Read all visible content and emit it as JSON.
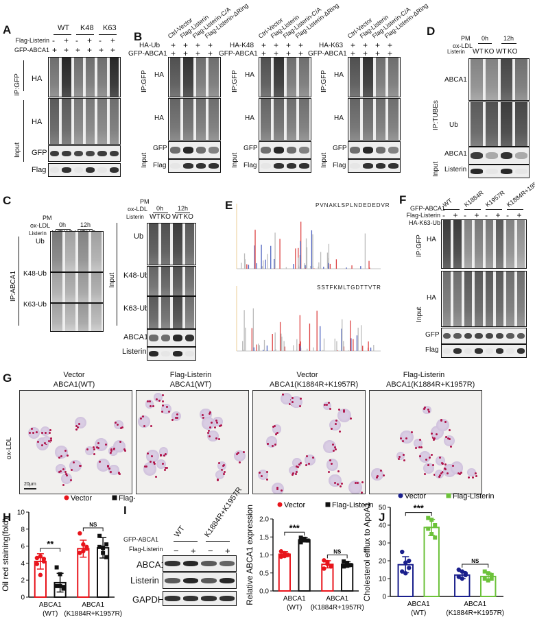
{
  "panels": {
    "A": "A",
    "B": "B",
    "C": "C",
    "D": "D",
    "E": "E",
    "F": "F",
    "G": "G",
    "H": "H",
    "I": "I",
    "J": "J"
  },
  "panelA": {
    "groups": [
      "WT",
      "K48",
      "K63"
    ],
    "rows": [
      {
        "label": "Flag-Listerin",
        "marks": [
          "-",
          "+",
          "-",
          "+",
          "-",
          "+"
        ]
      },
      {
        "label": "GFP-ABCA1",
        "marks": [
          "+",
          "+",
          "+",
          "+",
          "+",
          "+"
        ]
      }
    ],
    "ip": "IP:GFP",
    "input": "Input",
    "blots": [
      "HA",
      "HA",
      "GFP",
      "Flag"
    ]
  },
  "panelB": {
    "lanes": [
      "Ctrl-Vector",
      "Flag-Listerin",
      "Flag-Listerin-C/A",
      "Flag-Listerin-ΔRing"
    ],
    "subpanels": [
      {
        "row1": "HA-Ub",
        "row2": "GFP-ABCA1"
      },
      {
        "row1": "HA-K48",
        "row2": "GFP-ABCA1"
      },
      {
        "row1": "HA-K63",
        "row2": "GFP-ABCA1"
      }
    ],
    "mark": "+",
    "ip": "IP:GFP",
    "input": "Input",
    "blots": [
      "HA",
      "HA",
      "GFP",
      "Flag"
    ]
  },
  "panelD": {
    "pm": "PM",
    "oxldl": "ox-LDL",
    "times": [
      "0h",
      "12h"
    ],
    "listerin": "Listerin",
    "genotypes": [
      "WT",
      "KO",
      "WT",
      "KO"
    ],
    "ip": "IP:TUBEs",
    "input": "Input",
    "blots": [
      "ABCA1",
      "Ub",
      "ABCA1",
      "Listerin"
    ]
  },
  "panelC": {
    "pm": "PM",
    "oxldl": "ox-LDL",
    "times": [
      "0h",
      "12h"
    ],
    "listerin": "Listerin",
    "genotypes": [
      "WT",
      "KO",
      "WT",
      "KO"
    ],
    "ip": "IP:ABCA1",
    "input": "Input",
    "ipBlots": [
      "Ub",
      "K48-Ub",
      "K63-Ub"
    ],
    "inputBlots": [
      "Ub",
      "K48-Ub",
      "K63-Ub",
      "ABCA1",
      "Listerin"
    ]
  },
  "panelE": {
    "peptides": [
      {
        "seq": "PVNAKLSPLNDEDEDVR",
        "modified": "K"
      },
      {
        "seq": "SSTFKMLTGDTTVTR",
        "modified": "K"
      }
    ]
  },
  "panelF": {
    "construct": "GFP-ABCA1",
    "groups": [
      "WT",
      "K1884R",
      "K1957R",
      "K1884R+1957R"
    ],
    "rows": [
      {
        "label": "Flag-Listerin",
        "marks": [
          "-",
          "+",
          "-",
          "+",
          "-",
          "+",
          "-",
          "+"
        ]
      },
      {
        "label": "HA-K63-Ub",
        "marks": [
          "+",
          "+",
          "+",
          "+",
          "+",
          "+",
          "+",
          "+"
        ]
      }
    ],
    "ip": "IP:GFP",
    "input": "Input",
    "blots": [
      "HA",
      "HA",
      "GFP",
      "Flag"
    ]
  },
  "panelG": {
    "rowLabel": "ox-LDL",
    "scale": "20μm",
    "titles": [
      [
        "Vector",
        "ABCA1(WT)"
      ],
      [
        "Flag-Listerin",
        "ABCA1(WT)"
      ],
      [
        "Vector",
        "ABCA1(K1884R+K1957R)"
      ],
      [
        "Flag-Listerin",
        "ABCA1(K1884R+K1957R)"
      ]
    ]
  },
  "panelI": {
    "construct": "GFP-ABCA1",
    "groups": [
      "WT",
      "K1884R+K1957R"
    ],
    "listerin": "Flag-Listerin",
    "marks": [
      "−",
      "+",
      "−",
      "+"
    ],
    "blots": [
      "ABCA1",
      "Listerin",
      "GAPDH"
    ]
  },
  "colors": {
    "vector_red": "#e8141b",
    "flag_black": "#111111",
    "vector_navy": "#1a1f8c",
    "flag_green": "#6cc23a"
  },
  "chart_data": [
    {
      "id": "H",
      "type": "bar",
      "ylabel": "Oil red staining(fold)",
      "ylim": [
        0,
        10
      ],
      "yticks": [
        0,
        2,
        4,
        6,
        8,
        10
      ],
      "categories": [
        "ABCA1\n(WT)",
        "ABCA1\n(K1884R+K1957R)"
      ],
      "series": [
        {
          "name": "Vector",
          "marker": "circle",
          "color": "#e8141b",
          "means": [
            4.2,
            5.7
          ],
          "sd": [
            0.9,
            1.0
          ],
          "points": [
            [
              4.6,
              4.8,
              4.2,
              3.9,
              2.6,
              4.5
            ],
            [
              7.5,
              6.2,
              5.7,
              5.2,
              5.4,
              5.9
            ]
          ]
        },
        {
          "name": "Flag-Listerin",
          "marker": "square",
          "color": "#111111",
          "means": [
            1.7,
            5.8
          ],
          "sd": [
            1.1,
            1.2
          ],
          "points": [
            [
              3.5,
              2.7,
              1.2,
              1.3,
              1.3,
              1.0
            ],
            [
              7.2,
              5.8,
              6.2,
              5.9,
              5.2,
              4.7
            ]
          ]
        }
      ],
      "significance": [
        "**",
        "NS"
      ]
    },
    {
      "id": "I",
      "type": "bar",
      "ylabel": "Relative ABCA1 expression",
      "ylim": [
        0,
        2.0
      ],
      "yticks": [
        "0.0",
        "0.5",
        "1.0",
        "1.5",
        "2.0"
      ],
      "categories": [
        "ABCA1\n(WT)",
        "ABCA1\n(K1884R+1957R)"
      ],
      "series": [
        {
          "name": "Vector",
          "marker": "circle",
          "color": "#e8141b",
          "means": [
            1.02,
            0.74
          ],
          "sd": [
            0.07,
            0.1
          ],
          "points": [
            [
              1.1,
              1.05,
              1.0,
              0.95,
              0.97
            ],
            [
              0.85,
              0.75,
              0.68,
              0.62,
              0.8
            ]
          ]
        },
        {
          "name": "Flag-Listerin",
          "marker": "square",
          "color": "#111111",
          "means": [
            1.42,
            0.74
          ],
          "sd": [
            0.06,
            0.07
          ],
          "points": [
            [
              1.48,
              1.45,
              1.4,
              1.35,
              1.42
            ],
            [
              0.82,
              0.78,
              0.72,
              0.68,
              0.7
            ]
          ]
        }
      ],
      "significance": [
        "***",
        "NS"
      ]
    },
    {
      "id": "J",
      "type": "bar",
      "ylabel": "Cholesterol efflux to ApoA1",
      "ylim": [
        0,
        50
      ],
      "yticks": [
        0,
        10,
        20,
        30,
        40,
        50
      ],
      "categories": [
        "ABCA1\n(WT)",
        "ABCA1\n(K1884R+K1957R)"
      ],
      "series": [
        {
          "name": "Vector",
          "marker": "circle",
          "color": "#1a1f8c",
          "means": [
            17.8,
            12
          ],
          "sd": [
            4.5,
            2
          ],
          "points": [
            [
              25,
              19,
              16,
              14,
              13,
              20
            ],
            [
              15,
              14,
              12,
              11,
              10,
              13
            ]
          ]
        },
        {
          "name": "Flag-Listerin",
          "marker": "square",
          "color": "#6cc23a",
          "means": [
            38.7,
            11.2
          ],
          "sd": [
            4.5,
            2
          ],
          "points": [
            [
              44,
              43,
              40,
              38,
              35,
              33
            ],
            [
              14,
              13,
              12,
              10,
              9,
              10
            ]
          ]
        }
      ],
      "significance": [
        "***",
        "NS"
      ]
    }
  ]
}
